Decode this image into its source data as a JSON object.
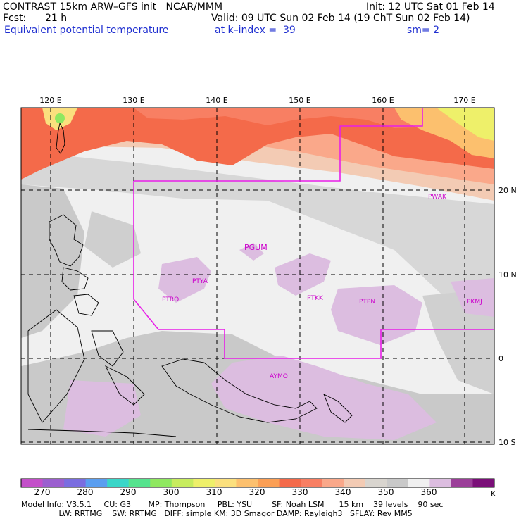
{
  "header": {
    "title": "CONTRAST 15km ARW–GFS init   NCAR/MMM",
    "init": "Init: 12 UTC Sat 01 Feb 14",
    "fcst_label": "Fcst:",
    "fcst_value": "21 h",
    "valid": "Valid: 09 UTC Sun 02 Feb 14 (19 ChT Sun 02 Feb 14)",
    "field": "Equivalent potential temperature",
    "level": "at k–index =  39",
    "smoothing": "sm= 2"
  },
  "map": {
    "lon_labels": [
      "120 E",
      "130 E",
      "140 E",
      "150 E",
      "160 E",
      "170 E"
    ],
    "lat_labels": [
      "20 N",
      "10 N",
      "0",
      "10 S"
    ],
    "stations": [
      {
        "id": "PGUM"
      },
      {
        "id": "PWAK"
      },
      {
        "id": "PTYA"
      },
      {
        "id": "PTRO"
      },
      {
        "id": "PTKK"
      },
      {
        "id": "PTPN"
      },
      {
        "id": "PKMJ"
      },
      {
        "id": "AYMO"
      }
    ]
  },
  "colorbar": {
    "labels": [
      "270",
      "280",
      "290",
      "300",
      "310",
      "320",
      "330",
      "340",
      "350",
      "360"
    ],
    "unit": "K",
    "colors": [
      "#c34fc9",
      "#9b5fcf",
      "#7a6de0",
      "#5a9ef0",
      "#3ad6c8",
      "#56e38e",
      "#8fe860",
      "#c7ec5e",
      "#eef06a",
      "#fbe07e",
      "#fcc06e",
      "#fb9f55",
      "#f46a4a",
      "#f87f63",
      "#faa88a",
      "#f3cbb4",
      "#d9d5cf",
      "#c9c9c9",
      "#f0f0f0",
      "#dcbde0",
      "#9b3e99",
      "#7a0f78"
    ]
  },
  "footer": {
    "line1": "Model Info: V3.5.1     CU: G3       MP: Thompson     PBL: YSU        SF: Noah LSM      15 km    39 levels    90 sec",
    "line2": "                 LW: RRTMG    SW: RRTMG   DIFF: simple KM: 3D Smagor DAMP: Rayleigh3   SFLAY: Rev MM5"
  }
}
